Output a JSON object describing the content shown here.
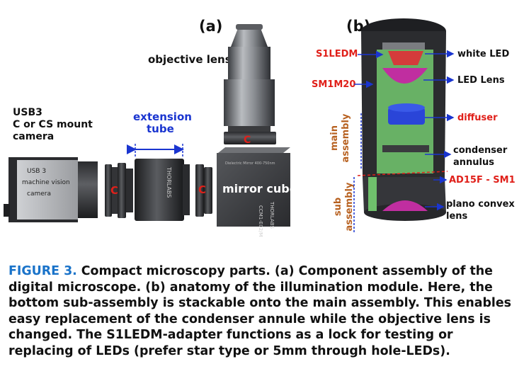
{
  "panel_a": {
    "label": "(a)",
    "objective_lens": "objective lens",
    "camera_line1": "USB3",
    "camera_line2": "C or CS mount",
    "camera_line3": "camera",
    "extension_line1": "extension",
    "extension_line2": "tube",
    "mirror_cube": "mirror cube",
    "camera_body_line1": "USB 3",
    "camera_body_line2": "machine vision",
    "camera_body_line3": "camera",
    "tube_brand": "THORLABS",
    "cube_brand": "THORLABS",
    "cube_model": "CCM1-E02/M",
    "c_mark": "C",
    "colors": {
      "blue": "#1a35d0",
      "red": "#e0201a"
    }
  },
  "panel_b": {
    "label": "(b)",
    "s1ledm": "S1LEDM",
    "sm1m20": "SM1M20",
    "white_led": "white LED",
    "led_lens": "LED Lens",
    "diffuser": "diffuser",
    "condenser_line1": "condenser",
    "condenser_line2": "annulus",
    "ad15f": "AD15F - SM1",
    "plano_line1": "plano convex",
    "plano_line2": "lens",
    "main_line1": "main",
    "main_line2": "assembly",
    "sub_line1": "sub",
    "sub_line2": "assembly",
    "colors": {
      "red": "#e0201a",
      "blue": "#1a35d0",
      "brown": "#b7601f",
      "green": "#6fc06c"
    }
  },
  "caption": {
    "figure_label": "FIGURE 3.",
    "text": "Compact microscopy parts. (a) Component assembly of the digital microscope. (b) anatomy of the illumination module. Here, the bottom sub-assembly is stackable onto the main assembly. This enables easy replacement of the condenser annule while the objective lens is changed. The S1LEDM-adapter functions as a lock for testing or replacing of LEDs (prefer star type or 5mm through hole-LEDs)."
  }
}
